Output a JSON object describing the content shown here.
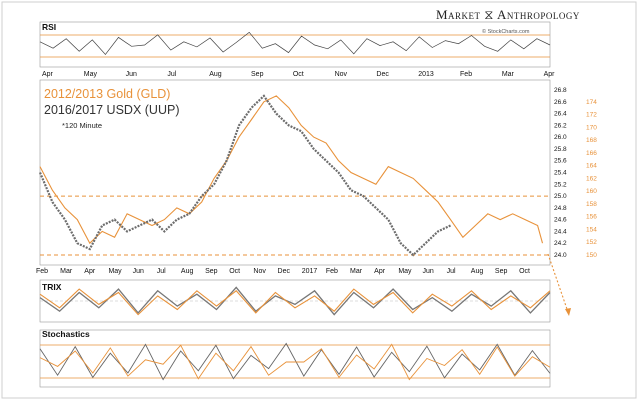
{
  "header": {
    "brand": "Market ⧖ Anthropology",
    "credit": "© StockCharts.com"
  },
  "legend": {
    "gold_label": "2012/2013 Gold (GLD)",
    "usd_label": "2016/2017 USDX (UUP)",
    "interval_note": "*120 Minute"
  },
  "panels": {
    "rsi": "RSI",
    "trix": "TRIX",
    "stoch": "Stochastics"
  },
  "colors": {
    "gold": "#e8923a",
    "usd": "#7a7a7a",
    "usd_dark": "#555555",
    "guide": "#e8923a"
  },
  "chart_data": [
    {
      "type": "line",
      "panel": "price",
      "title": "",
      "top_axis_labels": [
        "Apr",
        "May",
        "Jun",
        "Jul",
        "Aug",
        "Sep",
        "Oct",
        "Nov",
        "Dec",
        "2013",
        "Feb",
        "Mar",
        "Apr"
      ],
      "bottom_axis_labels": [
        "Feb",
        "Mar",
        "Apr",
        "May",
        "Jun",
        "Jul",
        "Aug",
        "Sep",
        "Oct",
        "Nov",
        "Dec",
        "2017",
        "Feb",
        "Mar",
        "Apr",
        "May",
        "Jun",
        "Jul",
        "Aug",
        "Sep",
        "Oct"
      ],
      "right_axis_usd": [
        "24.0",
        "24.2",
        "24.4",
        "24.6",
        "24.8",
        "25.0",
        "25.2",
        "25.4",
        "25.6",
        "25.8",
        "26.0",
        "26.2",
        "26.4",
        "26.6",
        "26.8"
      ],
      "right_axis_gold": [
        "150",
        "152",
        "154",
        "156",
        "158",
        "160",
        "162",
        "164",
        "166",
        "168",
        "170",
        "172",
        "174"
      ],
      "ylim_usd": [
        24.0,
        26.8
      ],
      "horizontal_guides_usd": [
        25.0,
        24.0
      ],
      "series": [
        {
          "name": "2012/2013 Gold (GLD)",
          "x_month_index": [
            0,
            0.5,
            1,
            1.5,
            2,
            2.5,
            3,
            3.5,
            4,
            4.5,
            5,
            5.5,
            6,
            6.5,
            7,
            7.5,
            8,
            8.5,
            9,
            9.5,
            10,
            10.5,
            11,
            11.5,
            12,
            12.5,
            13,
            13.5,
            14,
            14.5,
            15,
            15.5,
            16,
            16.5,
            17,
            17.5,
            18,
            18.5,
            19,
            19.5,
            20,
            20.2
          ],
          "values_usd_scale": [
            25.5,
            25.1,
            24.8,
            24.6,
            24.2,
            24.4,
            24.3,
            24.7,
            24.6,
            24.5,
            24.6,
            24.8,
            24.7,
            24.9,
            25.3,
            25.6,
            26.0,
            26.3,
            26.6,
            26.7,
            26.5,
            26.2,
            26.0,
            25.9,
            25.6,
            25.4,
            25.3,
            25.2,
            25.5,
            25.4,
            25.3,
            25.1,
            24.9,
            24.6,
            24.3,
            24.5,
            24.7,
            24.6,
            24.7,
            24.6,
            24.5,
            24.2
          ]
        },
        {
          "name": "2016/2017 USDX (UUP)",
          "x_month_index": [
            0,
            0.5,
            1,
            1.5,
            2,
            2.5,
            3,
            3.5,
            4,
            4.5,
            5,
            5.5,
            6,
            6.5,
            7,
            7.5,
            8,
            8.5,
            9,
            9.5,
            10,
            10.5,
            11,
            11.5,
            12,
            12.5,
            13,
            13.5,
            14,
            14.5,
            15,
            15.5,
            16,
            16.5
          ],
          "values_usd_scale": [
            25.4,
            24.9,
            24.6,
            24.2,
            24.1,
            24.5,
            24.6,
            24.4,
            24.5,
            24.6,
            24.4,
            24.6,
            24.7,
            25.0,
            25.2,
            25.6,
            26.2,
            26.5,
            26.7,
            26.4,
            26.2,
            26.1,
            25.8,
            25.6,
            25.4,
            25.1,
            25.0,
            24.8,
            24.6,
            24.2,
            24.0,
            24.2,
            24.4,
            24.5
          ]
        }
      ]
    },
    {
      "type": "line",
      "panel": "rsi",
      "title": "",
      "series": [
        {
          "name": "",
          "values": [
            55,
            45,
            60,
            40,
            58,
            35,
            62,
            48,
            50,
            66,
            42,
            55,
            47,
            61,
            39,
            54,
            70,
            45,
            52,
            38,
            64,
            50,
            44,
            58,
            36,
            60,
            49,
            55,
            41,
            63,
            46,
            57,
            52,
            65,
            48,
            40,
            58,
            44,
            60,
            50
          ]
        }
      ]
    },
    {
      "type": "line",
      "panel": "trix",
      "title": "",
      "series": [
        {
          "name": "",
          "values": [
            0.2,
            -0.6,
            0.5,
            -0.4,
            0.7,
            -0.7,
            0.6,
            -0.3,
            0.4,
            -0.5,
            0.8,
            -0.6,
            0.3,
            -0.2,
            0.6,
            -0.8,
            0.5,
            -0.4,
            0.7,
            -0.5,
            0.2,
            -0.6,
            0.4,
            -0.3,
            0.6,
            -0.7,
            0.5
          ]
        },
        {
          "name": "",
          "values": [
            0.4,
            -0.4,
            0.7,
            -0.2,
            0.5,
            -0.8,
            0.3,
            -0.5,
            0.6,
            -0.3,
            0.6,
            -0.7,
            0.5,
            -0.4,
            0.3,
            -0.6,
            0.7,
            -0.2,
            0.5,
            -0.7,
            0.4,
            -0.3,
            0.6,
            -0.5,
            0.3,
            -0.4,
            0.6
          ]
        }
      ]
    },
    {
      "type": "line",
      "panel": "stochastics",
      "title": "",
      "series": [
        {
          "name": "",
          "values": [
            80,
            20,
            85,
            15,
            70,
            25,
            90,
            10,
            75,
            30,
            88,
            12,
            65,
            35,
            92,
            18,
            78,
            22,
            84,
            16,
            72,
            28,
            86,
            14,
            68,
            32,
            90,
            20,
            76,
            24
          ]
        },
        {
          "name": "",
          "values": [
            60,
            40,
            75,
            25,
            82,
            18,
            55,
            45,
            88,
            12,
            70,
            30,
            85,
            20,
            50,
            50,
            80,
            15,
            66,
            34,
            90,
            10,
            58,
            42,
            78,
            22,
            84,
            18,
            62,
            38
          ]
        }
      ]
    }
  ]
}
